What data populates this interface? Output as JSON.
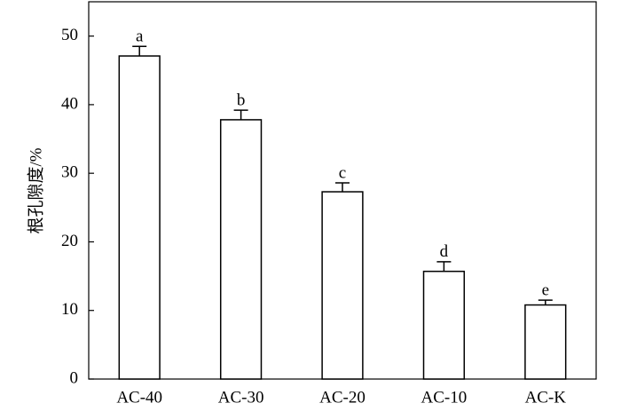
{
  "chart_data": {
    "type": "bar",
    "y_label": "根孔隙度/%",
    "categories": [
      "AC-40",
      "AC-30",
      "AC-20",
      "AC-10",
      "AC-K"
    ],
    "values": [
      47.1,
      37.8,
      27.3,
      15.7,
      10.8
    ],
    "errors": [
      1.4,
      1.4,
      1.3,
      1.4,
      0.7
    ],
    "annotations": [
      "a",
      "b",
      "c",
      "d",
      "e"
    ],
    "color": "#ffffff",
    "edge_color": "#000000",
    "ylim": [
      0,
      55
    ],
    "yticks": [
      0,
      10,
      20,
      30,
      40,
      50
    ],
    "grid": false
  }
}
